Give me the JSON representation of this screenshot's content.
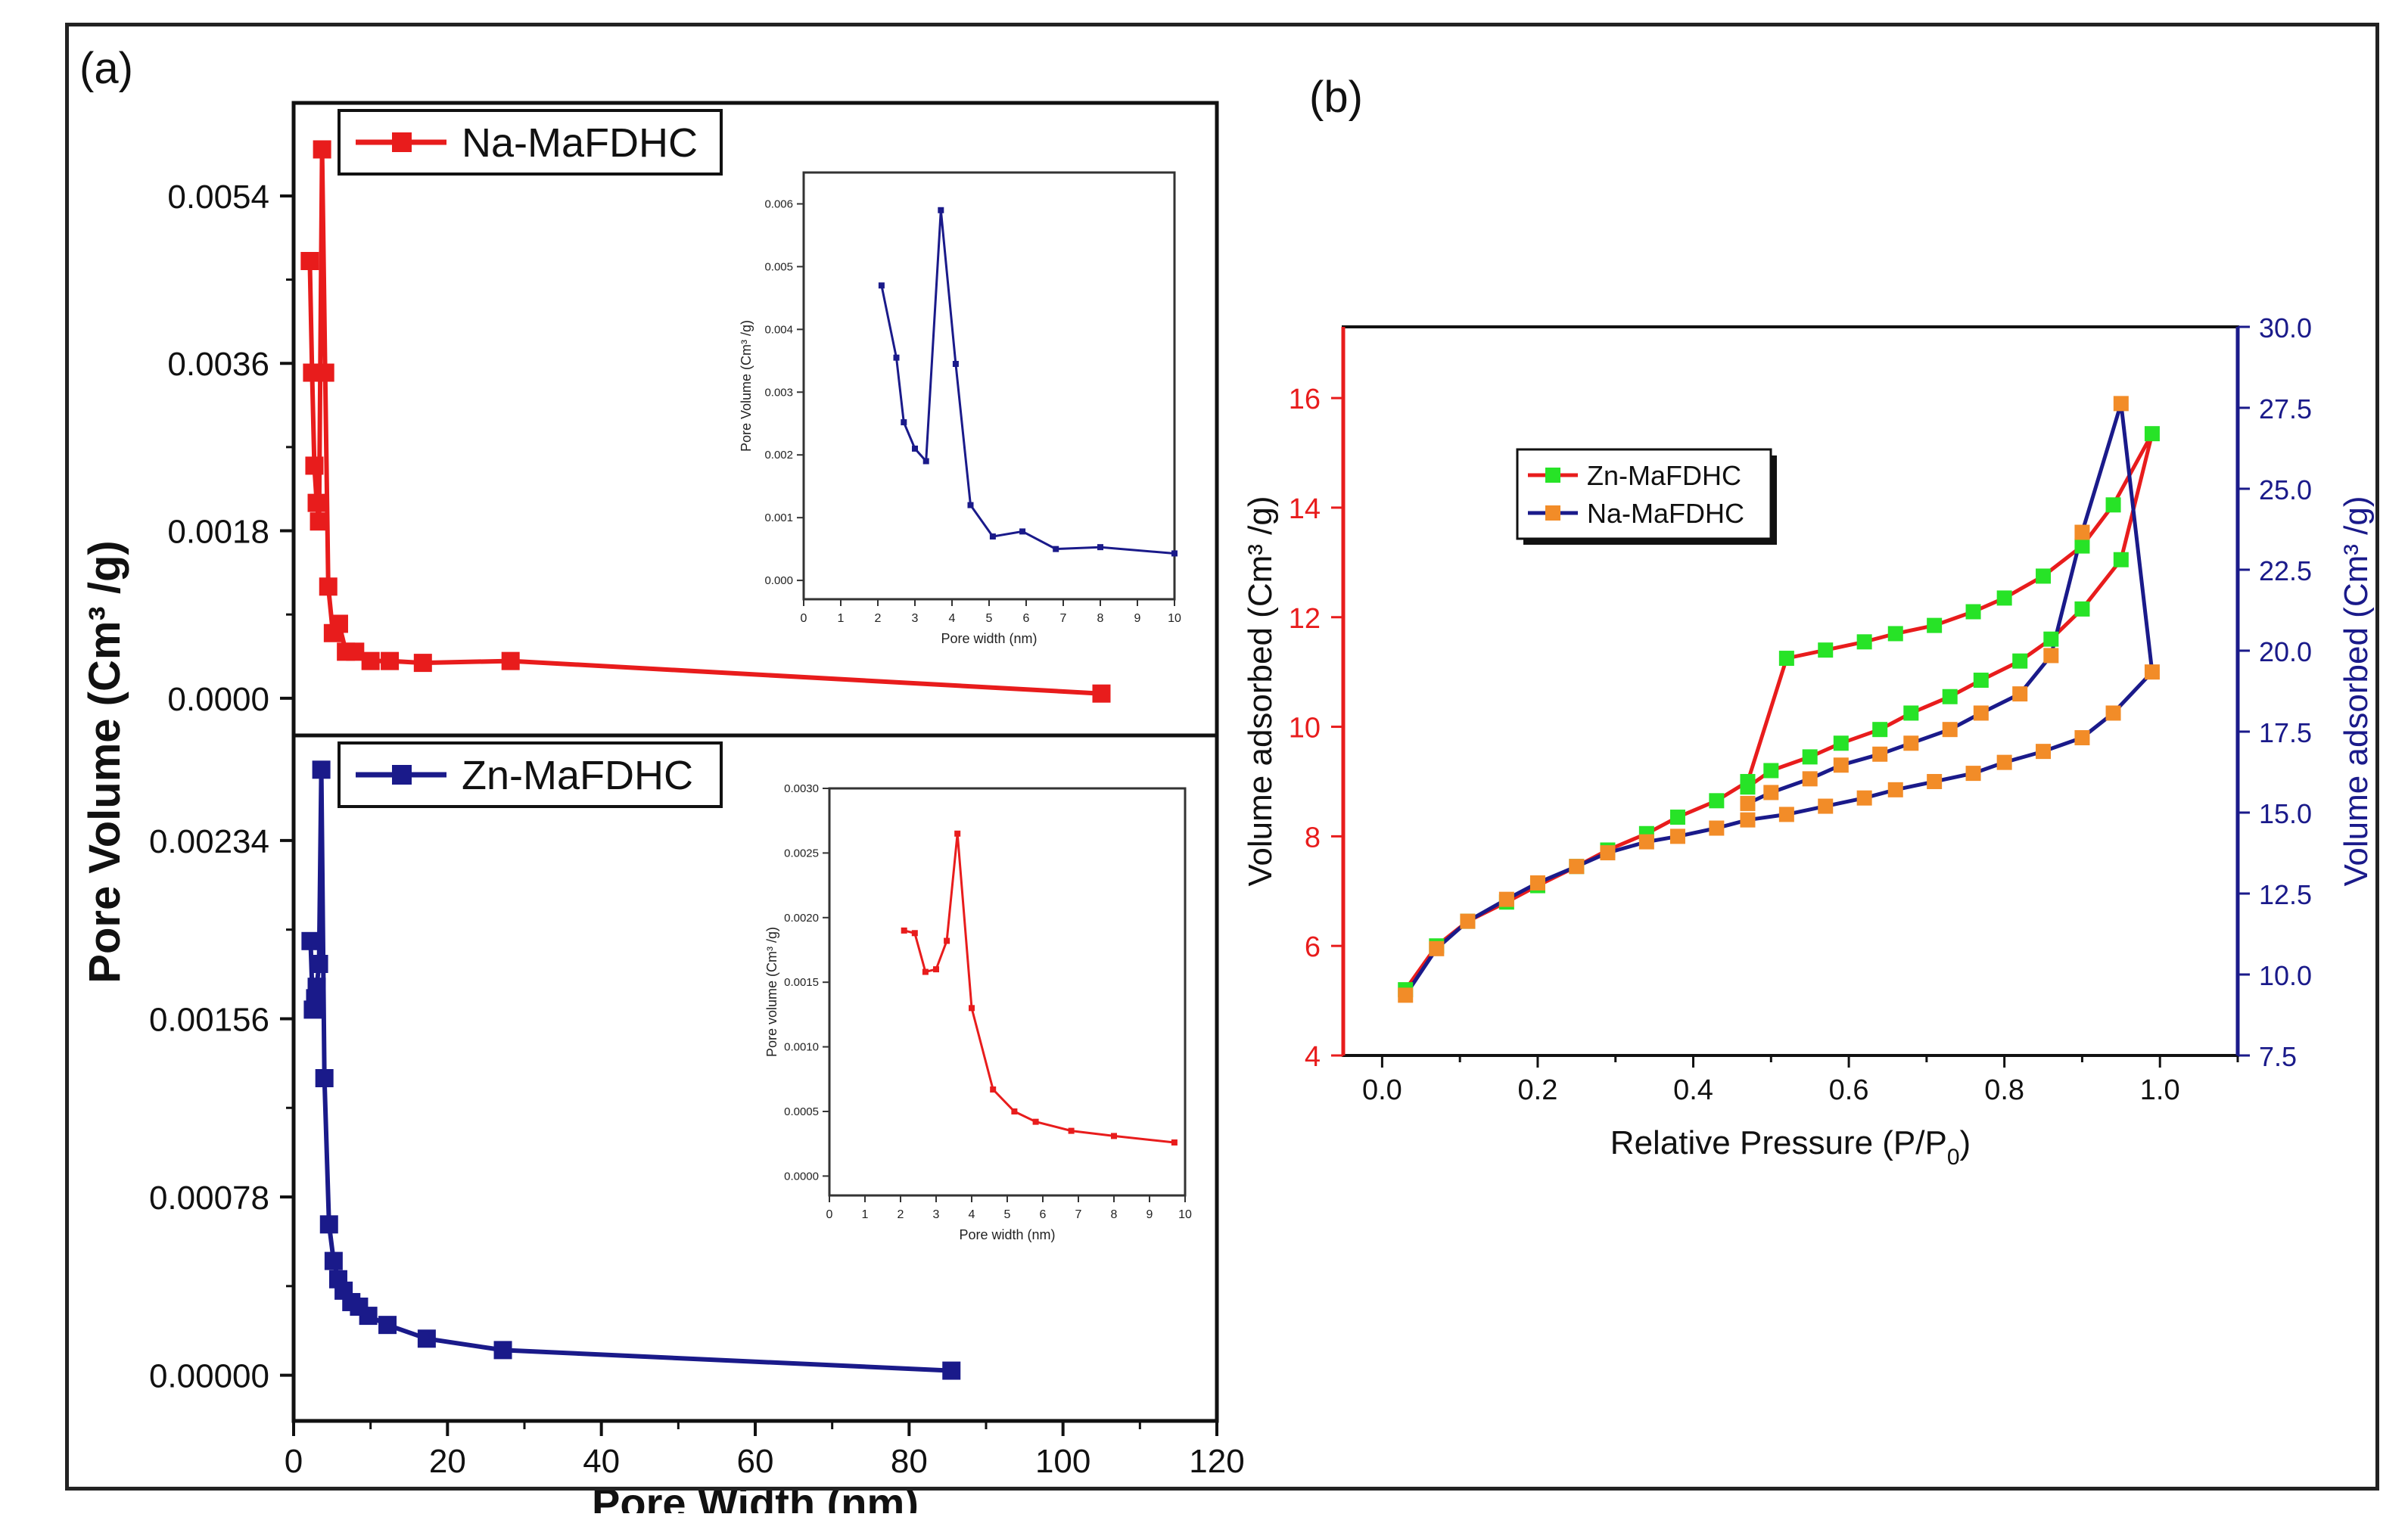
{
  "figure": {
    "panel_a_label": "(a)",
    "panel_b_label": "(b)"
  },
  "colors": {
    "red": "#e81c1c",
    "navy": "#1a1a8a",
    "green": "#27e327",
    "orange": "#f28c28",
    "axis": "#111111"
  },
  "chart_data": [
    {
      "id": "a_top",
      "type": "line",
      "title": "",
      "xlabel": "",
      "ylabel": "Pore Volume (Cm³ /g)",
      "xlim": [
        0,
        120
      ],
      "ylim": [
        -0.0004,
        0.0064
      ],
      "yticks": [
        "0.0000",
        "0.0018",
        "0.0036",
        "0.0054"
      ],
      "ytick_values": [
        0,
        0.0018,
        0.0036,
        0.0054
      ],
      "legend_position": "top-left",
      "series": [
        {
          "name": "Na-MaFDHC",
          "color": "#e81c1c",
          "marker": "square",
          "x": [
            2.1,
            2.4,
            2.7,
            3.0,
            3.3,
            3.7,
            4.1,
            4.5,
            5.1,
            5.9,
            6.8,
            8.0,
            10.0,
            12.5,
            16.8,
            28.2,
            105.0
          ],
          "y": [
            0.0047,
            0.0035,
            0.0025,
            0.0021,
            0.0019,
            0.0059,
            0.0035,
            0.0012,
            0.0007,
            0.0008,
            0.0005,
            0.0005,
            0.0004,
            0.0004,
            0.00038,
            0.0004,
            5e-05
          ]
        }
      ]
    },
    {
      "id": "a_top_inset",
      "type": "line",
      "title": "",
      "xlabel": "Pore width (nm)",
      "ylabel": "Pore Volume (Cm³ /g)",
      "xlim": [
        0,
        10
      ],
      "ylim": [
        -0.0003,
        0.0065
      ],
      "xticks": [
        "0",
        "1",
        "2",
        "3",
        "4",
        "5",
        "6",
        "7",
        "8",
        "9",
        "10"
      ],
      "yticks": [
        "0.000",
        "0.001",
        "0.002",
        "0.003",
        "0.004",
        "0.005",
        "0.006"
      ],
      "series": [
        {
          "color": "#1a1a8a",
          "x": [
            2.1,
            2.5,
            2.7,
            3.0,
            3.3,
            3.7,
            4.1,
            4.5,
            5.1,
            5.9,
            6.8,
            8.0,
            10.0
          ],
          "y": [
            0.0047,
            0.00355,
            0.00252,
            0.0021,
            0.0019,
            0.0059,
            0.00345,
            0.0012,
            0.0007,
            0.00078,
            0.0005,
            0.00053,
            0.00043
          ]
        }
      ]
    },
    {
      "id": "a_bottom",
      "type": "line",
      "title": "",
      "xlabel": "Pore Width (nm)",
      "ylabel": "Pore Volume (Cm³ /g)",
      "xlim": [
        0,
        120
      ],
      "ylim": [
        -0.0002,
        0.0028
      ],
      "xticks": [
        "0",
        "20",
        "40",
        "60",
        "80",
        "100",
        "120"
      ],
      "yticks": [
        "0.00000",
        "0.00078",
        "0.00156",
        "0.00234"
      ],
      "ytick_values": [
        0,
        0.00078,
        0.00156,
        0.00234
      ],
      "legend_position": "top-left",
      "series": [
        {
          "name": "Zn-MaFDHC",
          "color": "#1a1a8a",
          "marker": "square",
          "x": [
            2.2,
            2.5,
            2.8,
            3.0,
            3.3,
            3.6,
            4.0,
            4.6,
            5.2,
            5.8,
            6.5,
            7.5,
            8.5,
            9.7,
            12.2,
            17.3,
            27.2,
            85.5
          ],
          "y": [
            0.0019,
            0.0016,
            0.00165,
            0.0017,
            0.0018,
            0.00265,
            0.0013,
            0.00066,
            0.0005,
            0.00042,
            0.00037,
            0.00032,
            0.0003,
            0.00026,
            0.00022,
            0.00016,
            0.00011,
            2e-05
          ]
        }
      ]
    },
    {
      "id": "a_bottom_inset",
      "type": "line",
      "title": "",
      "xlabel": "Pore width (nm)",
      "ylabel": "Pore volume (Cm³ /g)",
      "xlim": [
        0,
        10
      ],
      "ylim": [
        -0.00015,
        0.003
      ],
      "xticks": [
        "0",
        "1",
        "2",
        "3",
        "4",
        "5",
        "6",
        "7",
        "8",
        "9",
        "10"
      ],
      "yticks": [
        "0.0000",
        "0.0005",
        "0.0010",
        "0.0015",
        "0.0020",
        "0.0025",
        "0.0030"
      ],
      "series": [
        {
          "color": "#e81c1c",
          "x": [
            2.1,
            2.4,
            2.7,
            3.0,
            3.3,
            3.6,
            4.0,
            4.6,
            5.2,
            5.8,
            6.8,
            8.0,
            9.7
          ],
          "y": [
            0.0019,
            0.00188,
            0.00158,
            0.0016,
            0.00182,
            0.00265,
            0.0013,
            0.00067,
            0.0005,
            0.00042,
            0.00035,
            0.00031,
            0.00026
          ]
        }
      ]
    },
    {
      "id": "b",
      "type": "line",
      "title": "",
      "xlabel": "Relative Pressure (P/P",
      "xlabel_sub": "0",
      "xlabel_close": ")",
      "ylabel": "Volume adsorbed (Cm³ /g)",
      "y2label": "Volume adsorbed (Cm³ /g)",
      "xlim": [
        -0.05,
        1.1
      ],
      "ylim": [
        4,
        17.3
      ],
      "y2lim": [
        7.5,
        30.0
      ],
      "xticks": [
        "0.0",
        "0.2",
        "0.4",
        "0.6",
        "0.8",
        "1.0"
      ],
      "yticks": [
        "4",
        "6",
        "8",
        "10",
        "12",
        "14",
        "16"
      ],
      "y2ticks": [
        "7.5",
        "10.0",
        "12.5",
        "15.0",
        "17.5",
        "20.0",
        "22.5",
        "25.0",
        "27.5",
        "30.0"
      ],
      "legend_position": "upper-left",
      "series": [
        {
          "name": "Zn-MaFDHC",
          "axis": "left",
          "line_color": "#e81c1c",
          "marker_color": "#27e327",
          "x": [
            0.03,
            0.07,
            0.11,
            0.16,
            0.2,
            0.25,
            0.29,
            0.34,
            0.38,
            0.43,
            0.47,
            0.52,
            0.57,
            0.62,
            0.66,
            0.71,
            0.76,
            0.8,
            0.85,
            0.9,
            0.94,
            0.99,
            0.95,
            0.9,
            0.86,
            0.82,
            0.77,
            0.73,
            0.68,
            0.64,
            0.59,
            0.55,
            0.5,
            0.47
          ],
          "y": [
            5.2,
            6.0,
            6.45,
            6.8,
            7.1,
            7.45,
            7.75,
            8.05,
            8.35,
            8.65,
            9.0,
            11.25,
            11.4,
            11.55,
            11.7,
            11.85,
            12.1,
            12.35,
            12.75,
            13.3,
            14.05,
            15.35,
            13.05,
            12.15,
            11.6,
            11.2,
            10.85,
            10.55,
            10.25,
            9.95,
            9.7,
            9.45,
            9.2,
            8.9
          ]
        },
        {
          "name": "Na-MaFDHC",
          "axis": "left",
          "line_color": "#1a1a8a",
          "marker_color": "#f28c28",
          "x": [
            0.03,
            0.07,
            0.11,
            0.16,
            0.2,
            0.25,
            0.29,
            0.34,
            0.38,
            0.43,
            0.47,
            0.52,
            0.57,
            0.62,
            0.66,
            0.71,
            0.76,
            0.8,
            0.85,
            0.9,
            0.94,
            0.99,
            0.95,
            0.9,
            0.86,
            0.82,
            0.77,
            0.73,
            0.68,
            0.64,
            0.59,
            0.55,
            0.5,
            0.47
          ],
          "y": [
            5.1,
            5.95,
            6.45,
            6.85,
            7.15,
            7.45,
            7.7,
            7.9,
            8.0,
            8.15,
            8.3,
            8.4,
            8.55,
            8.7,
            8.85,
            9.0,
            9.15,
            9.35,
            9.55,
            9.8,
            10.25,
            11.0,
            15.9,
            13.55,
            11.3,
            10.6,
            10.25,
            9.95,
            9.7,
            9.5,
            9.3,
            9.05,
            8.8,
            8.6
          ]
        }
      ]
    }
  ]
}
